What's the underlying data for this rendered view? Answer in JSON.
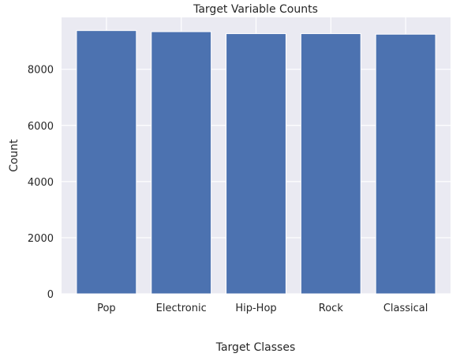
{
  "chart_data": {
    "type": "bar",
    "title": "Target Variable Counts",
    "xlabel": "Target Classes",
    "ylabel": "Count",
    "categories": [
      "Pop",
      "Electronic",
      "Hip-Hop",
      "Rock",
      "Classical"
    ],
    "values": [
      9380,
      9340,
      9270,
      9270,
      9250
    ],
    "ylim": [
      0,
      9849
    ],
    "yticks": [
      0,
      2000,
      4000,
      6000,
      8000
    ],
    "grid": true,
    "colors": {
      "bar": "#4c72b0",
      "background": "#eaeaf2",
      "grid": "#ffffff",
      "text": "#262626"
    }
  }
}
